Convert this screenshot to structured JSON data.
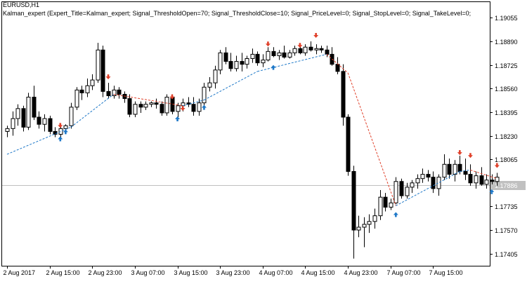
{
  "header": {
    "symbol_line": "EURUSD,H1",
    "expert_line": "Kalman_expert (Expert_Title=Kalman_expert; Signal_ThresholdOpen=70; Signal_ThresholdClose=10; Signal_PriceLevel=0; Signal_StopLevel=0; Signal_TakeLevel=0;"
  },
  "colors": {
    "bull_body": "#ffffff",
    "bear_body": "#000000",
    "candle_outline": "#000000",
    "kalman_up": "#1e78c8",
    "kalman_down": "#e0402a",
    "buy_arrow": "#1e78c8",
    "sell_arrow": "#e0402a",
    "price_line": "#c0c0c0",
    "price_label_bg": "#c0c0c0",
    "price_label_text": "#ffffff"
  },
  "chart_data": {
    "type": "candlestick",
    "symbol": "EURUSD",
    "timeframe": "H1",
    "ylim": [
      1.1732,
      1.1917
    ],
    "y_ticks": [
      "1.19055",
      "1.18890",
      "1.18725",
      "1.18560",
      "1.18395",
      "1.18230",
      "1.18065",
      "1.17900",
      "1.17735",
      "1.17570",
      "1.17405"
    ],
    "x_ticks": [
      "2 Aug 2017",
      "2 Aug 15:00",
      "2 Aug 23:00",
      "3 Aug 07:00",
      "3 Aug 15:00",
      "3 Aug 23:00",
      "4 Aug 07:00",
      "4 Aug 15:00",
      "4 Aug 23:00",
      "7 Aug 07:00",
      "7 Aug 15:00"
    ],
    "current_price_label": "1.17886",
    "current_price": 1.17886,
    "candles": [
      [
        1.1826,
        1.183,
        1.1822,
        1.1828
      ],
      [
        1.1828,
        1.184,
        1.1823,
        1.1835
      ],
      [
        1.1835,
        1.1845,
        1.183,
        1.1842
      ],
      [
        1.1842,
        1.1844,
        1.1826,
        1.1829
      ],
      [
        1.1829,
        1.1853,
        1.1827,
        1.185
      ],
      [
        1.185,
        1.1858,
        1.1834,
        1.1836
      ],
      [
        1.1836,
        1.184,
        1.1828,
        1.1831
      ],
      [
        1.1831,
        1.1838,
        1.1826,
        1.1835
      ],
      [
        1.1835,
        1.1837,
        1.1824,
        1.1826
      ],
      [
        1.1826,
        1.1829,
        1.1822,
        1.1824
      ],
      [
        1.1824,
        1.1831,
        1.1822,
        1.1828
      ],
      [
        1.1828,
        1.1831,
        1.1826,
        1.183
      ],
      [
        1.183,
        1.1846,
        1.1828,
        1.1843
      ],
      [
        1.1843,
        1.1857,
        1.1841,
        1.1855
      ],
      [
        1.1855,
        1.1858,
        1.1848,
        1.1853
      ],
      [
        1.1853,
        1.1863,
        1.185,
        1.1858
      ],
      [
        1.1858,
        1.1866,
        1.1855,
        1.1862
      ],
      [
        1.1862,
        1.1888,
        1.186,
        1.1883
      ],
      [
        1.1883,
        1.1886,
        1.185,
        1.1854
      ],
      [
        1.1854,
        1.186,
        1.1849,
        1.1851
      ],
      [
        1.1851,
        1.1858,
        1.1849,
        1.1855
      ],
      [
        1.1855,
        1.1857,
        1.1849,
        1.1852
      ],
      [
        1.1852,
        1.1854,
        1.1846,
        1.1849
      ],
      [
        1.1849,
        1.1852,
        1.1836,
        1.1838
      ],
      [
        1.1838,
        1.1847,
        1.1836,
        1.1845
      ],
      [
        1.1845,
        1.1847,
        1.1839,
        1.1843
      ],
      [
        1.1843,
        1.1847,
        1.1841,
        1.1845
      ],
      [
        1.1845,
        1.1847,
        1.1843,
        1.1846
      ],
      [
        1.1846,
        1.1849,
        1.1842,
        1.1845
      ],
      [
        1.1845,
        1.1847,
        1.1837,
        1.1839
      ],
      [
        1.1839,
        1.1852,
        1.1837,
        1.185
      ],
      [
        1.185,
        1.1852,
        1.1838,
        1.184
      ],
      [
        1.184,
        1.1846,
        1.1836,
        1.1844
      ],
      [
        1.1844,
        1.1849,
        1.184,
        1.1846
      ],
      [
        1.1846,
        1.185,
        1.1843,
        1.1845
      ],
      [
        1.1845,
        1.185,
        1.1837,
        1.184
      ],
      [
        1.184,
        1.1849,
        1.1837,
        1.1846
      ],
      [
        1.1846,
        1.186,
        1.1844,
        1.1857
      ],
      [
        1.1857,
        1.1864,
        1.1854,
        1.186
      ],
      [
        1.186,
        1.1872,
        1.1856,
        1.1869
      ],
      [
        1.1869,
        1.1883,
        1.1866,
        1.1881
      ],
      [
        1.1881,
        1.1885,
        1.1873,
        1.1875
      ],
      [
        1.1875,
        1.1881,
        1.1868,
        1.187
      ],
      [
        1.187,
        1.1879,
        1.1868,
        1.1875
      ],
      [
        1.1875,
        1.1881,
        1.1868,
        1.1873
      ],
      [
        1.1873,
        1.1879,
        1.187,
        1.1877
      ],
      [
        1.1877,
        1.1884,
        1.1874,
        1.188
      ],
      [
        1.188,
        1.1882,
        1.1872,
        1.1874
      ],
      [
        1.1874,
        1.188,
        1.1871,
        1.1876
      ],
      [
        1.1876,
        1.1885,
        1.1875,
        1.1882
      ],
      [
        1.1882,
        1.1885,
        1.1878,
        1.1879
      ],
      [
        1.1879,
        1.1883,
        1.1876,
        1.1881
      ],
      [
        1.1881,
        1.1886,
        1.1877,
        1.1878
      ],
      [
        1.1878,
        1.1883,
        1.1877,
        1.1881
      ],
      [
        1.1881,
        1.1886,
        1.1879,
        1.1884
      ],
      [
        1.1884,
        1.1886,
        1.188,
        1.1881
      ],
      [
        1.1881,
        1.1887,
        1.1879,
        1.1885
      ],
      [
        1.1885,
        1.1889,
        1.1882,
        1.1883
      ],
      [
        1.1883,
        1.1887,
        1.188,
        1.1884
      ],
      [
        1.1884,
        1.1886,
        1.1881,
        1.1883
      ],
      [
        1.1883,
        1.1886,
        1.1878,
        1.188
      ],
      [
        1.188,
        1.1885,
        1.1872,
        1.1873
      ],
      [
        1.1873,
        1.1878,
        1.1866,
        1.1868
      ],
      [
        1.1868,
        1.1873,
        1.183,
        1.1836
      ],
      [
        1.1836,
        1.1838,
        1.1795,
        1.1798
      ],
      [
        1.1798,
        1.1802,
        1.1737,
        1.1757
      ],
      [
        1.1757,
        1.1767,
        1.1752,
        1.1759
      ],
      [
        1.1759,
        1.1766,
        1.1745,
        1.1761
      ],
      [
        1.1761,
        1.1768,
        1.1755,
        1.1763
      ],
      [
        1.1763,
        1.1772,
        1.1758,
        1.1767
      ],
      [
        1.1767,
        1.1785,
        1.1764,
        1.178
      ],
      [
        1.178,
        1.1783,
        1.177,
        1.1773
      ],
      [
        1.1773,
        1.1779,
        1.1771,
        1.1776
      ],
      [
        1.1776,
        1.1794,
        1.1775,
        1.1791
      ],
      [
        1.1791,
        1.1793,
        1.1779,
        1.1781
      ],
      [
        1.1781,
        1.179,
        1.1779,
        1.1787
      ],
      [
        1.1787,
        1.1792,
        1.1783,
        1.179
      ],
      [
        1.179,
        1.1796,
        1.1786,
        1.1793
      ],
      [
        1.1793,
        1.18,
        1.179,
        1.1796
      ],
      [
        1.1796,
        1.1799,
        1.1791,
        1.1794
      ],
      [
        1.1794,
        1.1798,
        1.1783,
        1.1786
      ],
      [
        1.1786,
        1.1796,
        1.1781,
        1.1794
      ],
      [
        1.1794,
        1.181,
        1.1792,
        1.1803
      ],
      [
        1.1803,
        1.1807,
        1.1793,
        1.1796
      ],
      [
        1.1796,
        1.1806,
        1.1791,
        1.1803
      ],
      [
        1.1803,
        1.1809,
        1.1796,
        1.1798
      ],
      [
        1.1798,
        1.1807,
        1.1792,
        1.1796
      ],
      [
        1.1796,
        1.1803,
        1.1788,
        1.179
      ],
      [
        1.179,
        1.1798,
        1.1786,
        1.1795
      ],
      [
        1.1795,
        1.1801,
        1.1788,
        1.1789
      ],
      [
        1.1789,
        1.1796,
        1.1786,
        1.1792
      ],
      [
        1.1792,
        1.1796,
        1.1789,
        1.1791
      ],
      [
        1.1791,
        1.1797,
        1.1788,
        1.1794
      ]
    ],
    "kalman_line": [
      [
        0,
        1.181
      ],
      [
        12,
        1.1829
      ],
      [
        20,
        1.1852
      ],
      [
        33,
        1.1844
      ],
      [
        37,
        1.1848
      ],
      [
        47,
        1.1868
      ],
      [
        60,
        1.188
      ],
      [
        64,
        1.1867
      ],
      [
        73,
        1.1774
      ],
      [
        80,
        1.1788
      ],
      [
        85,
        1.1798
      ],
      [
        87,
        1.1799
      ],
      [
        92,
        1.1793
      ]
    ],
    "buy_signals": [
      [
        10,
        1.1824
      ],
      [
        11,
        1.1829
      ],
      [
        32,
        1.1838
      ],
      [
        37,
        1.1846
      ],
      [
        50,
        1.1874
      ],
      [
        73,
        1.1771
      ],
      [
        91,
        1.1787
      ]
    ],
    "sell_signals": [
      [
        10,
        1.1827
      ],
      [
        19,
        1.1861
      ],
      [
        31,
        1.1847
      ],
      [
        33,
        1.1839
      ],
      [
        49,
        1.1884
      ],
      [
        55,
        1.1883
      ],
      [
        58,
        1.189
      ],
      [
        85,
        1.1808
      ],
      [
        87,
        1.1806
      ],
      [
        92,
        1.1799
      ]
    ]
  }
}
